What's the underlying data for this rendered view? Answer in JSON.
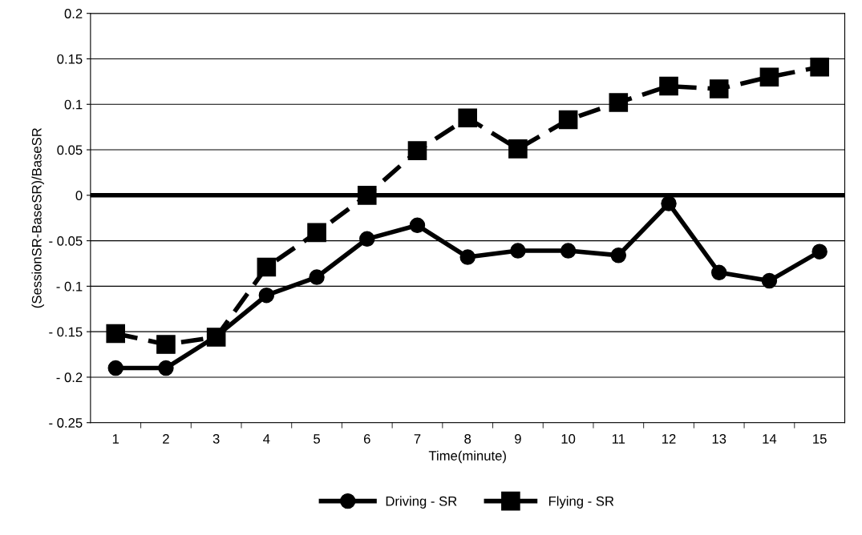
{
  "chart_data": {
    "type": "line",
    "xlabel": "Time(minute)",
    "ylabel": "(SessionSR-BaseSR)/BaseSR",
    "categories": [
      "1",
      "2",
      "3",
      "4",
      "5",
      "6",
      "7",
      "8",
      "9",
      "10",
      "11",
      "12",
      "13",
      "14",
      "15"
    ],
    "series": [
      {
        "name": "Driving - SR",
        "color": "#000000",
        "marker": "circle",
        "line_style": "solid",
        "values": [
          -0.19,
          -0.19,
          -0.155,
          -0.11,
          -0.09,
          -0.048,
          -0.033,
          -0.068,
          -0.061,
          -0.061,
          -0.066,
          -0.009,
          -0.085,
          -0.094,
          -0.062
        ]
      },
      {
        "name": "Flying - SR",
        "color": "#000000",
        "marker": "square",
        "line_style": "dashed",
        "values": [
          -0.152,
          -0.164,
          -0.156,
          -0.079,
          -0.041,
          0,
          0.049,
          0.085,
          0.051,
          0.083,
          0.102,
          0.12,
          0.117,
          0.13,
          0.141
        ]
      }
    ],
    "ylim": [
      -0.25,
      0.2
    ],
    "yticks": [
      {
        "value": -0.25,
        "label": "- 0.25"
      },
      {
        "value": -0.2,
        "label": "- 0.2"
      },
      {
        "value": -0.15,
        "label": "- 0.15"
      },
      {
        "value": -0.1,
        "label": "- 0.1"
      },
      {
        "value": -0.05,
        "label": "- 0.05"
      },
      0,
      0.05,
      0.1,
      0.15,
      0.2
    ],
    "ref_lines": [
      {
        "axis": "y",
        "value": 0,
        "color": "#000000"
      }
    ],
    "grid": "y",
    "legend": "bottom"
  }
}
